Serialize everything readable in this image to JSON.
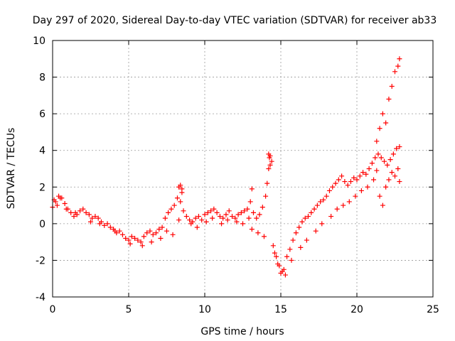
{
  "chart_data": {
    "type": "scatter",
    "title": "Day 297 of 2020, Sidereal Day-to-day VTEC variation (SDTVAR) for receiver ab33",
    "xlabel": "GPS time / hours",
    "ylabel": "SDTVAR / TECUs",
    "xlim": [
      0,
      25
    ],
    "ylim": [
      -4,
      10
    ],
    "xticks": [
      0,
      5,
      10,
      15,
      20,
      25
    ],
    "yticks": [
      -4,
      -2,
      0,
      2,
      4,
      6,
      8,
      10
    ],
    "xtick_labels": [
      "0",
      "5",
      "10",
      "15",
      "20",
      "25"
    ],
    "ytick_labels": [
      "-4",
      "-2",
      "0",
      "2",
      "4",
      "6",
      "8",
      "10"
    ],
    "grid": true,
    "legend": "none",
    "marker": "+",
    "color": "#ff0000",
    "series": [
      {
        "name": "ab33",
        "x": [
          0.0,
          0.2,
          0.4,
          0.6,
          0.8,
          1.0,
          1.2,
          1.4,
          1.6,
          1.8,
          2.0,
          2.2,
          2.4,
          2.6,
          2.8,
          3.0,
          3.2,
          3.4,
          3.6,
          3.8,
          4.0,
          4.2,
          4.4,
          4.6,
          4.8,
          5.0,
          5.2,
          5.4,
          5.6,
          5.8,
          6.0,
          6.2,
          6.4,
          6.6,
          6.8,
          7.0,
          7.2,
          7.4,
          7.6,
          7.8,
          8.0,
          8.2,
          8.4,
          8.6,
          8.8,
          9.0,
          9.2,
          9.4,
          9.6,
          9.8,
          10.0,
          10.2,
          10.4,
          10.6,
          10.8,
          11.0,
          11.2,
          11.4,
          11.6,
          11.8,
          12.0,
          12.2,
          12.4,
          12.6,
          12.8,
          13.0,
          13.2,
          13.4,
          13.6,
          13.8,
          14.0,
          14.1,
          14.2,
          14.3,
          14.4,
          14.6,
          14.8,
          15.0,
          15.2,
          15.4,
          15.6,
          15.8,
          16.0,
          16.2,
          16.4,
          16.6,
          16.8,
          17.0,
          17.2,
          17.4,
          17.6,
          17.8,
          18.0,
          18.2,
          18.4,
          18.6,
          18.8,
          19.0,
          19.2,
          19.4,
          19.6,
          19.8,
          20.0,
          20.2,
          20.4,
          20.6,
          20.8,
          21.0,
          21.2,
          21.4,
          21.6,
          21.8,
          22.0,
          22.2,
          22.4,
          22.6,
          22.8,
          0.1,
          0.3,
          0.5,
          0.9,
          1.5,
          2.5,
          3.1,
          4.1,
          5.1,
          5.9,
          6.5,
          7.1,
          7.5,
          7.9,
          8.3,
          8.5,
          9.1,
          9.5,
          10.1,
          10.5,
          11.1,
          11.5,
          12.1,
          12.5,
          13.1,
          13.5,
          13.9,
          14.5,
          14.7,
          14.9,
          15.1,
          15.3,
          15.7,
          16.3,
          16.7,
          17.3,
          17.7,
          18.3,
          18.7,
          19.1,
          19.5,
          19.9,
          20.3,
          20.7,
          21.1,
          21.3,
          21.5,
          21.7,
          21.9,
          22.1,
          22.3,
          22.5,
          22.7,
          21.3,
          21.5,
          21.7,
          21.9,
          22.1,
          22.3,
          22.5,
          22.7,
          22.8,
          22.8,
          14.2,
          14.25,
          14.3,
          8.3,
          8.4,
          8.5,
          13.1,
          12.9
        ],
        "y": [
          0.9,
          1.2,
          1.5,
          1.4,
          1.1,
          0.8,
          0.6,
          0.4,
          0.5,
          0.7,
          0.8,
          0.6,
          0.5,
          0.3,
          0.4,
          0.3,
          0.1,
          -0.1,
          0.0,
          -0.2,
          -0.3,
          -0.5,
          -0.4,
          -0.6,
          -0.8,
          -0.9,
          -0.7,
          -0.8,
          -0.9,
          -1.0,
          -0.7,
          -0.5,
          -0.4,
          -0.6,
          -0.5,
          -0.3,
          -0.2,
          0.3,
          0.6,
          0.8,
          1.0,
          1.4,
          1.2,
          0.7,
          0.4,
          0.2,
          0.1,
          0.3,
          0.4,
          0.2,
          0.5,
          0.6,
          0.7,
          0.8,
          0.6,
          0.4,
          0.3,
          0.5,
          0.7,
          0.4,
          0.3,
          0.5,
          0.6,
          0.7,
          0.8,
          1.2,
          0.6,
          0.3,
          0.5,
          0.9,
          1.5,
          2.2,
          3.0,
          3.7,
          3.4,
          -1.6,
          -2.2,
          -2.7,
          -2.5,
          -1.8,
          -1.4,
          -0.9,
          -0.5,
          -0.2,
          0.1,
          0.3,
          0.4,
          0.6,
          0.8,
          1.0,
          1.2,
          1.3,
          1.5,
          1.8,
          2.0,
          2.2,
          2.4,
          2.6,
          2.3,
          2.1,
          2.3,
          2.5,
          2.4,
          2.6,
          2.8,
          2.7,
          3.0,
          3.3,
          3.6,
          3.8,
          3.6,
          3.4,
          3.2,
          3.5,
          3.8,
          4.1,
          4.2,
          1.3,
          1.0,
          1.4,
          0.8,
          0.6,
          0.1,
          0.0,
          -0.4,
          -1.1,
          -1.2,
          -1.0,
          -0.8,
          -0.4,
          -0.6,
          0.2,
          1.7,
          0.0,
          -0.2,
          0.1,
          0.3,
          0.0,
          0.2,
          0.1,
          0.0,
          -0.3,
          -0.5,
          -0.7,
          -1.2,
          -1.8,
          -2.3,
          -2.6,
          -2.8,
          -2.0,
          -1.3,
          -0.9,
          -0.4,
          0.0,
          0.4,
          0.8,
          1.0,
          1.2,
          1.5,
          1.8,
          2.0,
          2.4,
          2.9,
          1.5,
          1.0,
          2.0,
          2.4,
          2.8,
          2.6,
          3.0,
          4.5,
          5.2,
          6.0,
          5.5,
          6.8,
          7.5,
          8.3,
          8.6,
          9.0,
          2.3,
          3.8,
          3.6,
          3.2,
          2.0,
          2.1,
          1.9,
          1.9,
          0.3
        ]
      }
    ]
  }
}
